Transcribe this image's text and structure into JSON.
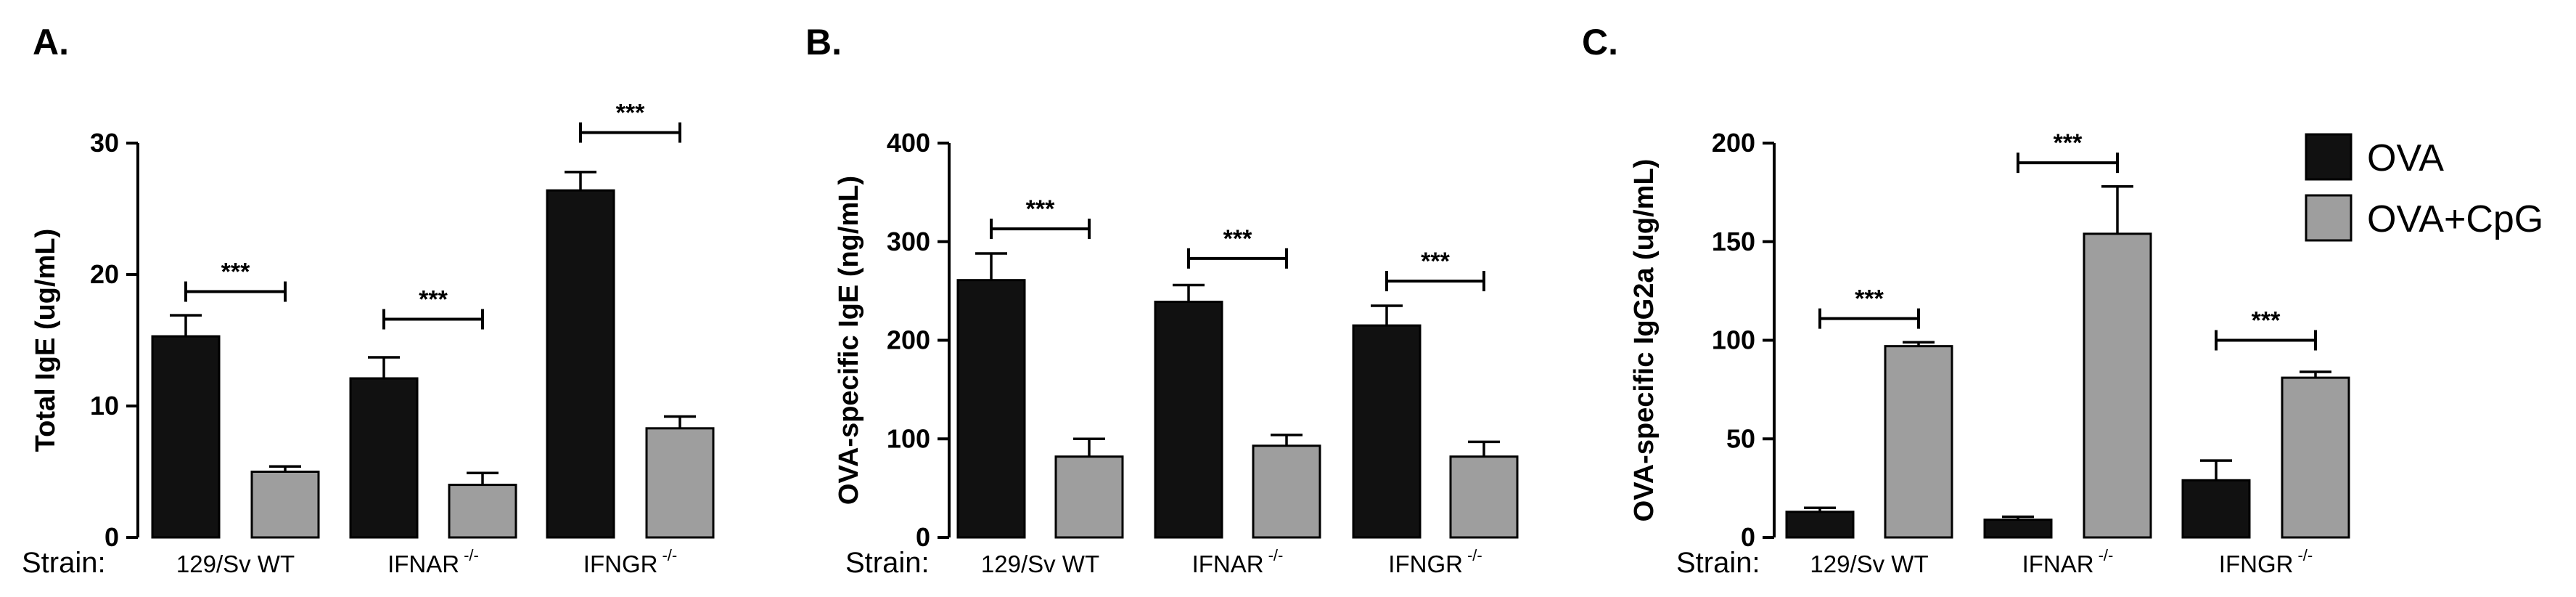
{
  "chart_data": [
    {
      "type": "bar",
      "panel": "A.",
      "ylabel": "Total  IgE (ug/mL)",
      "ylim": [
        0,
        30
      ],
      "yticks": [
        0,
        10,
        20,
        30
      ],
      "strain_label": "Strain:",
      "categories": [
        {
          "name": "129/Sv WT",
          "sup": ""
        },
        {
          "name": "IFNAR",
          "sup": "-/-"
        },
        {
          "name": "IFNGR",
          "sup": "-/-"
        }
      ],
      "series": [
        {
          "name": "OVA",
          "color": "#111111",
          "values": [
            15.3,
            12.1,
            26.4
          ],
          "errors": [
            1.6,
            1.6,
            1.4
          ]
        },
        {
          "name": "OVA+CpG",
          "color": "#9e9e9e",
          "values": [
            5.0,
            4.0,
            8.3
          ],
          "errors": [
            0.4,
            0.9,
            0.9
          ]
        }
      ],
      "significance": [
        {
          "category": 0,
          "label": "***",
          "y": 18.7
        },
        {
          "category": 1,
          "label": "***",
          "y": 16.6
        },
        {
          "category": 2,
          "label": "***",
          "y": 30.8
        }
      ]
    },
    {
      "type": "bar",
      "panel": "B.",
      "ylabel": "OVA-specific IgE (ng/mL)",
      "ylim": [
        0,
        400
      ],
      "yticks": [
        0,
        100,
        200,
        300,
        400
      ],
      "strain_label": "Strain:",
      "categories": [
        {
          "name": "129/Sv WT",
          "sup": ""
        },
        {
          "name": "IFNAR",
          "sup": "-/-"
        },
        {
          "name": "IFNGR",
          "sup": "-/-"
        }
      ],
      "series": [
        {
          "name": "OVA",
          "color": "#111111",
          "values": [
            261,
            239,
            215
          ],
          "errors": [
            27,
            17,
            20
          ]
        },
        {
          "name": "OVA+CpG",
          "color": "#9e9e9e",
          "values": [
            82,
            93,
            82
          ],
          "errors": [
            18,
            11,
            15
          ]
        }
      ],
      "significance": [
        {
          "category": 0,
          "label": "***",
          "y": 313
        },
        {
          "category": 1,
          "label": "***",
          "y": 283
        },
        {
          "category": 2,
          "label": "***",
          "y": 260
        }
      ]
    },
    {
      "type": "bar",
      "panel": "C.",
      "ylabel": "OVA-specific IgG2a (ug/mL)",
      "ylim": [
        0,
        200
      ],
      "yticks": [
        0,
        50,
        100,
        150,
        200
      ],
      "strain_label": "Strain:",
      "categories": [
        {
          "name": "129/Sv WT",
          "sup": ""
        },
        {
          "name": "IFNAR",
          "sup": "-/-"
        },
        {
          "name": "IFNGR",
          "sup": "-/-"
        }
      ],
      "series": [
        {
          "name": "OVA",
          "color": "#111111",
          "values": [
            13,
            9,
            29
          ],
          "errors": [
            2,
            1.5,
            10
          ]
        },
        {
          "name": "OVA+CpG",
          "color": "#9e9e9e",
          "values": [
            97,
            154,
            81
          ],
          "errors": [
            2,
            24,
            3
          ]
        }
      ],
      "significance": [
        {
          "category": 0,
          "label": "***",
          "y": 111
        },
        {
          "category": 1,
          "label": "***",
          "y": 190
        },
        {
          "category": 2,
          "label": "***",
          "y": 100
        }
      ],
      "legend": {
        "position": "top-right",
        "entries": [
          {
            "label": "OVA",
            "color": "#111111"
          },
          {
            "label": "OVA+CpG",
            "color": "#9e9e9e"
          }
        ]
      }
    }
  ]
}
